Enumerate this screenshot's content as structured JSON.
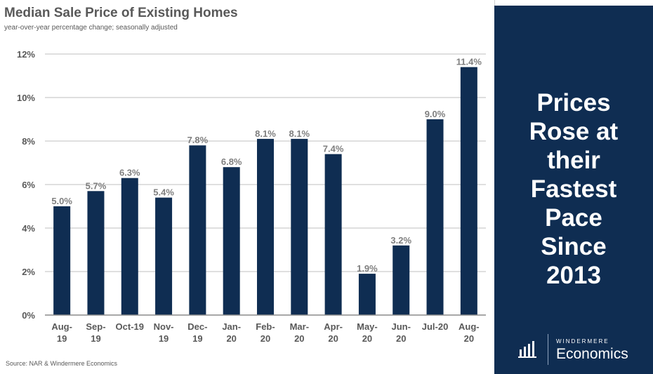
{
  "chart_data": {
    "type": "bar",
    "title": "Median Sale Price of Existing Homes",
    "subtitle": "year-over-year percentage change; seasonally adjusted",
    "categories": [
      [
        "Aug-",
        "19"
      ],
      [
        "Sep-",
        "19"
      ],
      [
        "Oct-19"
      ],
      [
        "Nov-",
        "19"
      ],
      [
        "Dec-",
        "19"
      ],
      [
        "Jan-",
        "20"
      ],
      [
        "Feb-",
        "20"
      ],
      [
        "Mar-",
        "20"
      ],
      [
        "Apr-",
        "20"
      ],
      [
        "May-",
        "20"
      ],
      [
        "Jun-",
        "20"
      ],
      [
        "Jul-20"
      ],
      [
        "Aug-",
        "20"
      ]
    ],
    "values": [
      5.0,
      5.7,
      6.3,
      5.4,
      7.8,
      6.8,
      8.1,
      8.1,
      7.4,
      1.9,
      3.2,
      9.0,
      11.4
    ],
    "value_labels": [
      "5.0%",
      "5.7%",
      "6.3%",
      "5.4%",
      "7.8%",
      "6.8%",
      "8.1%",
      "8.1%",
      "7.4%",
      "1.9%",
      "3.2%",
      "9.0%",
      "11.4%"
    ],
    "yticks": [
      0,
      2,
      4,
      6,
      8,
      10,
      12
    ],
    "ytick_labels": [
      "0%",
      "2%",
      "4%",
      "6%",
      "8%",
      "10%",
      "12%"
    ],
    "ylim": [
      0,
      12
    ],
    "xlabel": "",
    "ylabel": "",
    "grid": true,
    "legend": "none",
    "bar_color": "#0f2d52",
    "source": "Source: NAR & Windermere Economics"
  },
  "side_panel": {
    "headline_lines": [
      "Prices",
      "Rose at",
      "their",
      "Fastest",
      "Pace",
      "Since",
      "2013"
    ],
    "background_color": "#0f2d52"
  },
  "brand": {
    "icon": "windermere-logo-icon",
    "small_text": "WINDERMERE",
    "large_text": "Economics"
  }
}
